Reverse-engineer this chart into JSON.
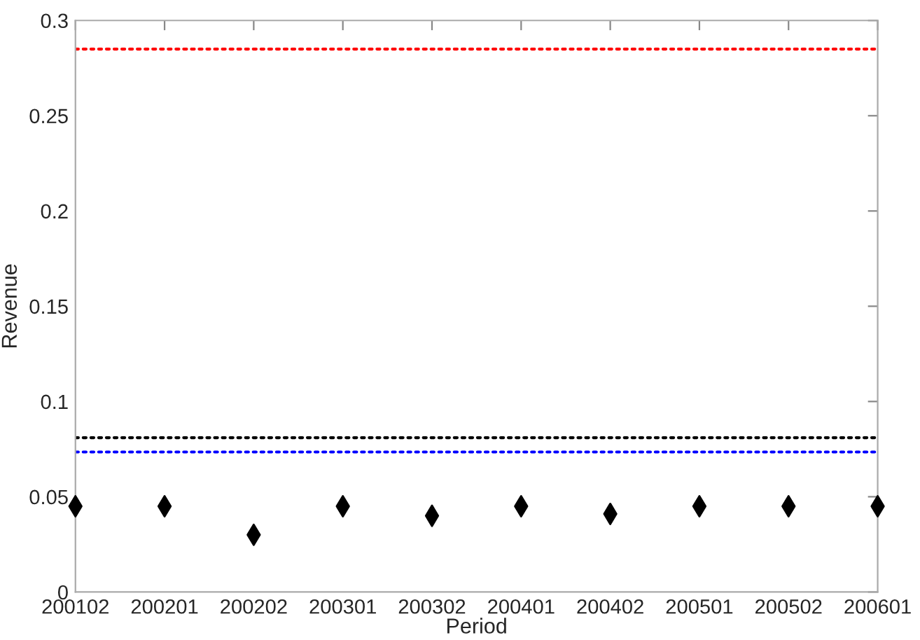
{
  "chart_data": {
    "type": "scatter",
    "xlabel": "Period",
    "ylabel": "Revenue",
    "categories": [
      "200102",
      "200201",
      "200202",
      "200301",
      "200302",
      "200401",
      "200402",
      "200501",
      "200502",
      "200601"
    ],
    "series": [
      {
        "color": "#000000",
        "values": [
          0.045,
          0.045,
          0.03,
          0.045,
          0.04,
          0.045,
          0.041,
          0.045,
          0.045,
          0.045
        ]
      }
    ],
    "marker": "diamond",
    "grid": false,
    "legend": false,
    "ylim": [
      0,
      0.3
    ],
    "yticks": [
      0,
      0.05,
      0.1,
      0.15,
      0.2,
      0.25,
      0.3
    ],
    "ref_lines": [
      {
        "axis": "y",
        "value": 0.285,
        "color": "#ff0000",
        "line_style": "dotted"
      },
      {
        "axis": "y",
        "value": 0.081,
        "color": "#000000",
        "line_style": "dotted"
      },
      {
        "axis": "y",
        "value": 0.0735,
        "color": "#0000ff",
        "line_style": "dotted"
      }
    ]
  }
}
